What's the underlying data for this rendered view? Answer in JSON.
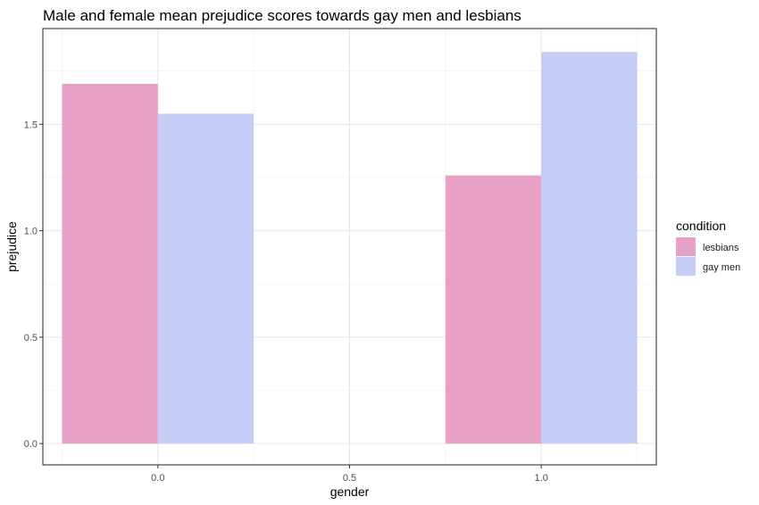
{
  "chart_data": {
    "type": "bar",
    "title": "Male and female mean prejudice scores towards gay men and lesbians",
    "xlabel": "gender",
    "ylabel": "prejudice",
    "x_ticks": [
      "0.0",
      "0.5",
      "1.0"
    ],
    "y_ticks": [
      "0.0",
      "0.5",
      "1.0",
      "1.5"
    ],
    "xlim": [
      -0.3,
      1.3
    ],
    "ylim": [
      -0.1,
      1.95
    ],
    "bar_group_width": 0.5,
    "grid": true,
    "legend_title": "condition",
    "legend_position": "right",
    "categories": [
      0.0,
      1.0
    ],
    "series": [
      {
        "name": "lesbians",
        "color": "#e6a1c5",
        "values": [
          1.69,
          1.26
        ]
      },
      {
        "name": "gay men",
        "color": "#c5cdf7",
        "values": [
          1.55,
          1.84
        ]
      }
    ]
  }
}
